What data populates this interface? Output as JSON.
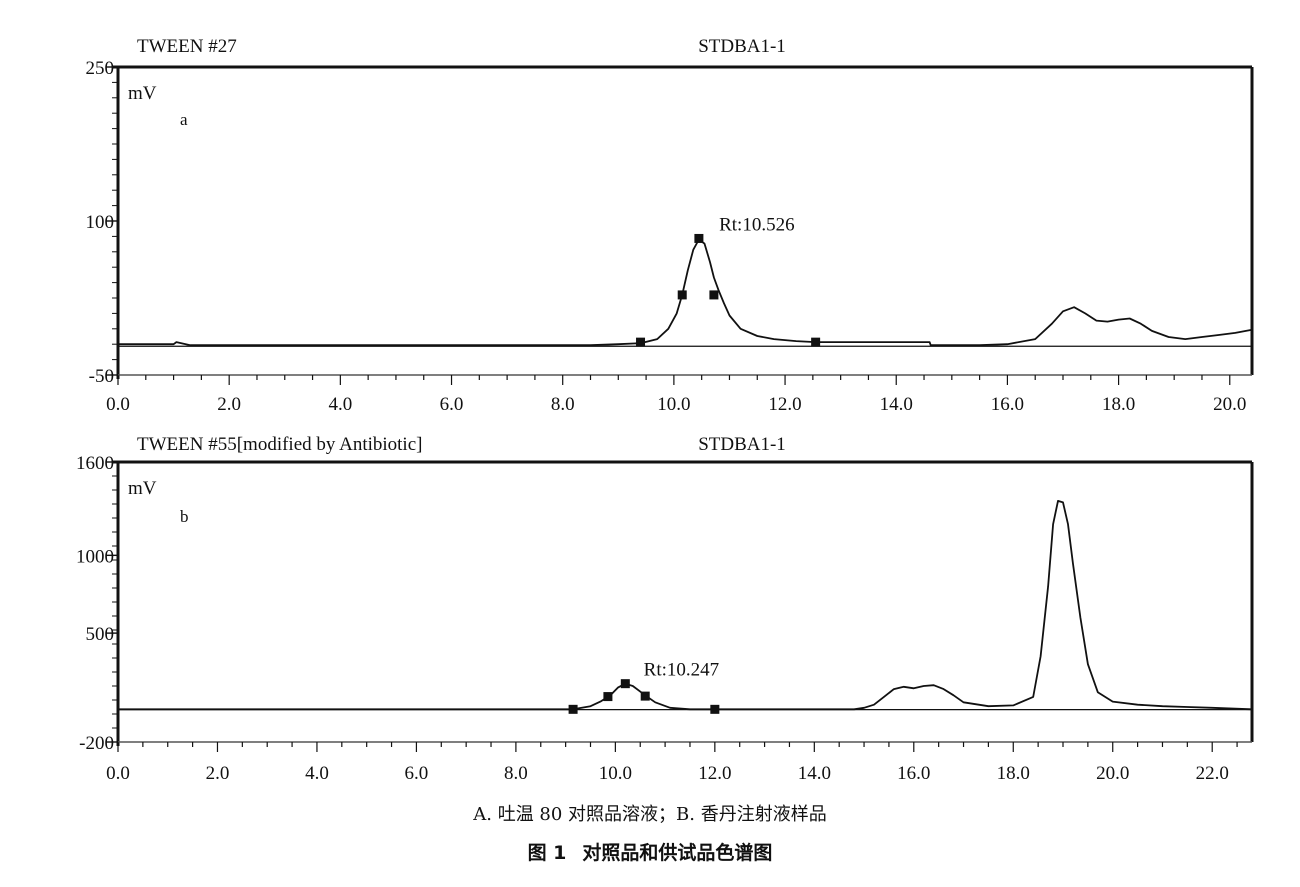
{
  "chart_data": [
    {
      "type": "line",
      "panel_letter": "a",
      "header_left": "TWEEN #27",
      "header_center": "STDBA1-1",
      "ylabel": "mV",
      "ylim": [
        -50,
        250
      ],
      "yticks": [
        250,
        100,
        -50
      ],
      "ytick_labels": [
        "250",
        "100",
        "-50"
      ],
      "xlim": [
        0,
        20.4
      ],
      "xticks": [
        0,
        2,
        4,
        6,
        8,
        10,
        12,
        14,
        16,
        18,
        20
      ],
      "xtick_labels": [
        "0.0",
        "2.0",
        "4.0",
        "6.0",
        "8.0",
        "10.0",
        "12.0",
        "14.0",
        "16.0",
        "18.0",
        "20.0"
      ],
      "grid": false,
      "baseline_y": -22,
      "series": [
        {
          "x": [
            0,
            1.0,
            1.05,
            1.3,
            2,
            3,
            4,
            5,
            6,
            7,
            8,
            8.5,
            9.0,
            9.4,
            9.7,
            9.9,
            10.05,
            10.15,
            10.25,
            10.35,
            10.45,
            10.55,
            10.65,
            10.72,
            10.8,
            10.9,
            11.0,
            11.2,
            11.5,
            11.8,
            12.2,
            12.55,
            13.0,
            14.0,
            14.6,
            14.62,
            15.0,
            15.5,
            16.0,
            16.5,
            16.8,
            17.0,
            17.2,
            17.4,
            17.6,
            17.8,
            18.0,
            18.2,
            18.4,
            18.6,
            18.9,
            19.2,
            19.5,
            19.8,
            20.1,
            20.4
          ],
          "y": [
            -20,
            -20,
            -18,
            -21,
            -21,
            -21,
            -21,
            -21,
            -21,
            -21,
            -21,
            -21,
            -20,
            -19,
            -15,
            -5,
            10,
            28,
            52,
            72,
            82,
            78,
            60,
            45,
            33,
            20,
            8,
            -5,
            -12,
            -15,
            -17,
            -18,
            -18,
            -18,
            -18,
            -21,
            -21,
            -21,
            -20,
            -15,
            0,
            12,
            16,
            10,
            3,
            2,
            4,
            5,
            0,
            -7,
            -13,
            -15,
            -13,
            -11,
            -9,
            -6
          ]
        }
      ],
      "markers": [
        {
          "x": 9.4,
          "y": -18
        },
        {
          "x": 10.15,
          "y": 28
        },
        {
          "x": 10.45,
          "y": 83
        },
        {
          "x": 10.72,
          "y": 28
        },
        {
          "x": 12.55,
          "y": -18
        }
      ],
      "annotation": {
        "text": "Rt:10.526",
        "x": 10.526,
        "y": 83
      }
    },
    {
      "type": "line",
      "panel_letter": "b",
      "header_left": "TWEEN #55[modified by Antibiotic]",
      "header_center": "STDBA1-1",
      "ylabel": "mV",
      "ylim": [
        -200,
        1600
      ],
      "yticks": [
        1600,
        1000,
        500,
        -200
      ],
      "ytick_labels": [
        "1600",
        "1000",
        "500",
        "-200"
      ],
      "xlim": [
        0,
        22.8
      ],
      "xticks": [
        0,
        2,
        4,
        6,
        8,
        10,
        12,
        14,
        16,
        18,
        20,
        22
      ],
      "xtick_labels": [
        "0.0",
        "2.0",
        "4.0",
        "6.0",
        "8.0",
        "10.0",
        "12.0",
        "14.0",
        "16.0",
        "18.0",
        "20.0",
        "22.0"
      ],
      "grid": false,
      "baseline_y": 8,
      "series": [
        {
          "x": [
            0,
            2,
            4,
            6,
            8,
            9.15,
            9.5,
            9.7,
            9.9,
            10.05,
            10.2,
            10.35,
            10.6,
            10.8,
            11.1,
            11.5,
            12.0,
            13.0,
            14.0,
            14.8,
            15.0,
            15.2,
            15.4,
            15.6,
            15.8,
            16.0,
            16.2,
            16.4,
            16.6,
            16.8,
            17.0,
            17.5,
            18.0,
            18.4,
            18.55,
            18.7,
            18.8,
            18.9,
            19.0,
            19.1,
            19.2,
            19.35,
            19.5,
            19.7,
            20.0,
            20.5,
            21.0,
            21.5,
            22.0,
            22.8
          ],
          "y": [
            10,
            10,
            10,
            10,
            10,
            10,
            30,
            60,
            100,
            150,
            175,
            160,
            100,
            55,
            20,
            10,
            10,
            10,
            10,
            10,
            20,
            40,
            90,
            140,
            155,
            145,
            160,
            165,
            140,
            100,
            55,
            30,
            35,
            90,
            350,
            800,
            1200,
            1350,
            1340,
            1200,
            950,
            600,
            300,
            120,
            60,
            40,
            30,
            25,
            20,
            10
          ]
        }
      ],
      "markers": [
        {
          "x": 9.15,
          "y": 10
        },
        {
          "x": 9.85,
          "y": 92
        },
        {
          "x": 10.2,
          "y": 175
        },
        {
          "x": 10.6,
          "y": 95
        },
        {
          "x": 12.0,
          "y": 10
        }
      ],
      "annotation": {
        "text": "Rt:10.247",
        "x": 10.247,
        "y": 175
      }
    }
  ],
  "caption": "A. 吐温 80 对照品溶液；B. 香丹注射液样品",
  "figure_title": {
    "number": "图 1",
    "text": "对照品和供试品色谱图"
  }
}
